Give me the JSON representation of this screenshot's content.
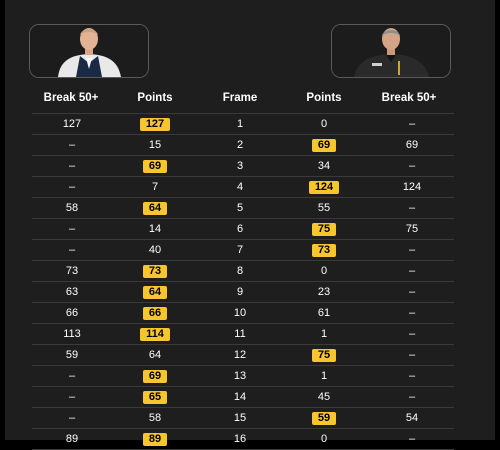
{
  "headers": {
    "break_left": "Break 50+",
    "points_left": "Points",
    "frame": "Frame",
    "points_right": "Points",
    "break_right": "Break 50+"
  },
  "colors": {
    "highlight": "#f7c52e",
    "background": "#1e1e1e",
    "divider": "#3a3a3a"
  },
  "frames": [
    {
      "break_left": "127",
      "points_left": "127",
      "frame": "1",
      "points_right": "0",
      "break_right": "–",
      "winner": "left"
    },
    {
      "break_left": "–",
      "points_left": "15",
      "frame": "2",
      "points_right": "69",
      "break_right": "69",
      "winner": "right"
    },
    {
      "break_left": "–",
      "points_left": "69",
      "frame": "3",
      "points_right": "34",
      "break_right": "–",
      "winner": "left"
    },
    {
      "break_left": "–",
      "points_left": "7",
      "frame": "4",
      "points_right": "124",
      "break_right": "124",
      "winner": "right"
    },
    {
      "break_left": "58",
      "points_left": "64",
      "frame": "5",
      "points_right": "55",
      "break_right": "–",
      "winner": "left"
    },
    {
      "break_left": "–",
      "points_left": "14",
      "frame": "6",
      "points_right": "75",
      "break_right": "75",
      "winner": "right"
    },
    {
      "break_left": "–",
      "points_left": "40",
      "frame": "7",
      "points_right": "73",
      "break_right": "–",
      "winner": "right"
    },
    {
      "break_left": "73",
      "points_left": "73",
      "frame": "8",
      "points_right": "0",
      "break_right": "–",
      "winner": "left"
    },
    {
      "break_left": "63",
      "points_left": "64",
      "frame": "9",
      "points_right": "23",
      "break_right": "–",
      "winner": "left"
    },
    {
      "break_left": "66",
      "points_left": "66",
      "frame": "10",
      "points_right": "61",
      "break_right": "–",
      "winner": "left"
    },
    {
      "break_left": "113",
      "points_left": "114",
      "frame": "11",
      "points_right": "1",
      "break_right": "–",
      "winner": "left"
    },
    {
      "break_left": "59",
      "points_left": "64",
      "frame": "12",
      "points_right": "75",
      "break_right": "–",
      "winner": "right"
    },
    {
      "break_left": "–",
      "points_left": "69",
      "frame": "13",
      "points_right": "1",
      "break_right": "–",
      "winner": "left"
    },
    {
      "break_left": "–",
      "points_left": "65",
      "frame": "14",
      "points_right": "45",
      "break_right": "–",
      "winner": "left"
    },
    {
      "break_left": "–",
      "points_left": "58",
      "frame": "15",
      "points_right": "59",
      "break_right": "54",
      "winner": "right"
    },
    {
      "break_left": "89",
      "points_left": "89",
      "frame": "16",
      "points_right": "0",
      "break_right": "–",
      "winner": "left"
    }
  ]
}
